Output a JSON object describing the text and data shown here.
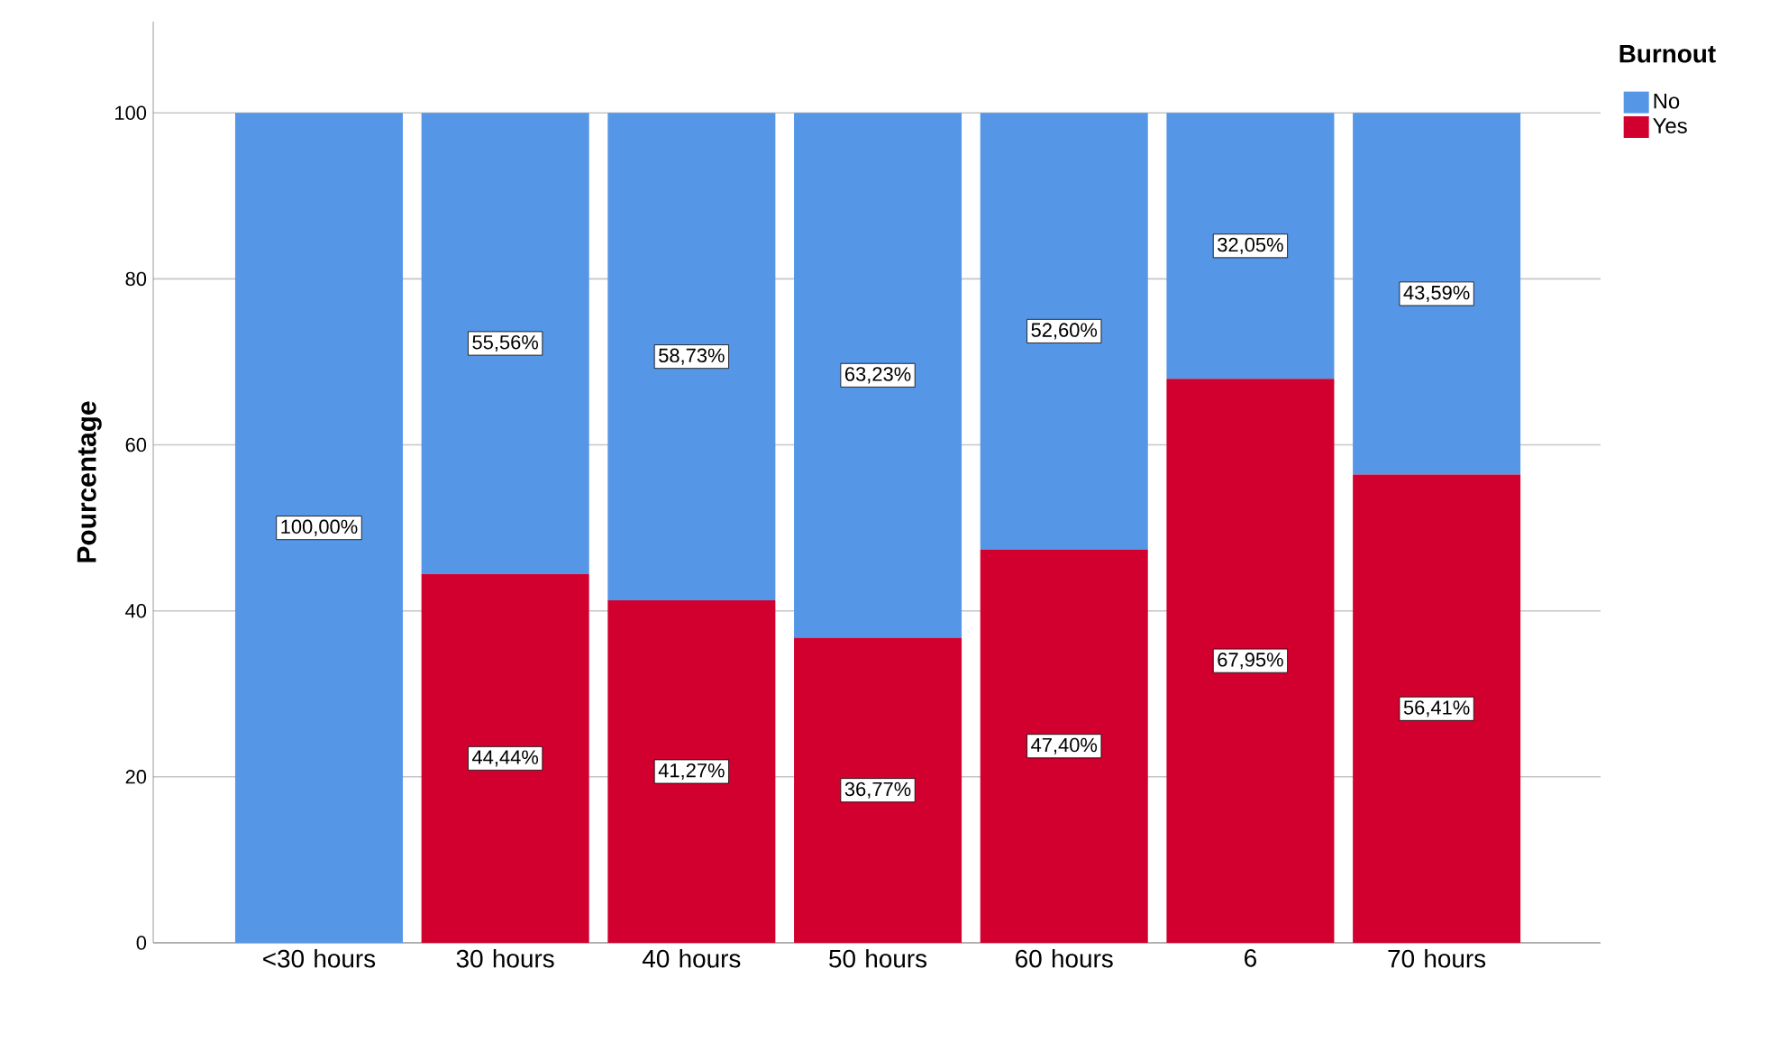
{
  "chart_data": {
    "type": "bar",
    "stacked": true,
    "ylabel": "Pourcentage",
    "legend_title": "Burnout",
    "categories": [
      "<30 hours",
      "30 hours",
      "40 hours",
      "50 hours",
      "60 hours",
      "6",
      "70 hours"
    ],
    "series": [
      {
        "name": "Yes",
        "color": "#d2002f",
        "values": [
          0,
          44.44,
          41.27,
          36.77,
          47.4,
          67.95,
          56.41
        ],
        "value_labels": [
          null,
          "44,44%",
          "41,27%",
          "36,77%",
          "47,40%",
          "67,95%",
          "56,41%"
        ]
      },
      {
        "name": "No",
        "color": "#5596e6",
        "values": [
          100,
          55.56,
          58.73,
          63.23,
          52.6,
          32.05,
          43.59
        ],
        "value_labels": [
          "100,00%",
          "55,56%",
          "58,73%",
          "63,23%",
          "52,60%",
          "32,05%",
          "43,59%"
        ]
      }
    ],
    "ylim": [
      0,
      111
    ],
    "yticks": [
      0,
      20,
      40,
      60,
      80,
      100
    ],
    "grid": "y",
    "legend": "top right"
  }
}
